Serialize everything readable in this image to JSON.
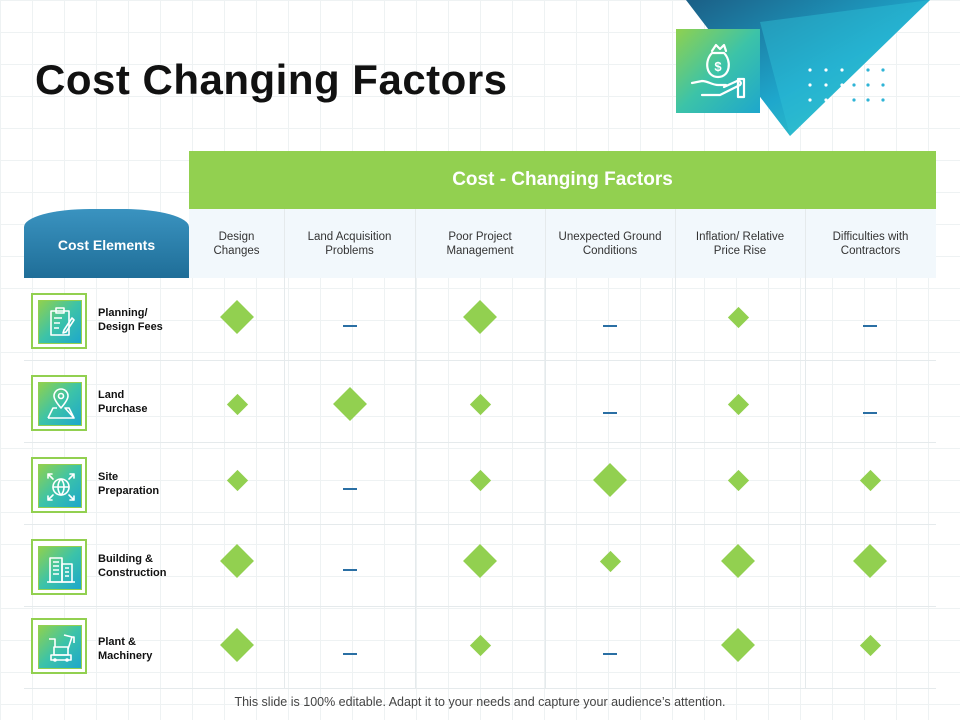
{
  "slide": {
    "title": "Cost Changing Factors",
    "footer": "This slide is 100% editable. Adapt it to your needs and capture your audience’s attention."
  },
  "decoration": {
    "top_icon": "money-bag-in-hand-icon"
  },
  "colors": {
    "accent_green": "#92d050",
    "header_blue": "#1f6e98",
    "teal": "#1ea7cc",
    "dash_blue": "#2a6fa4"
  },
  "table": {
    "super_header": "Cost - Changing Factors",
    "row_header_label": "Cost Elements",
    "columns": [
      "Design\nChanges",
      "Land Acquisition\nProblems",
      "Poor Project\nManagement",
      "Unexpected Ground\nConditions",
      "Inflation/ Relative\nPrice Rise",
      "Difficulties with\nContractors"
    ],
    "rows": [
      {
        "label": "Planning/\nDesign Fees",
        "icon": "clipboard-pencil-icon",
        "cells": [
          "large",
          "none",
          "large",
          "none",
          "small",
          "none"
        ]
      },
      {
        "label": "Land\nPurchase",
        "icon": "map-pin-icon",
        "cells": [
          "small",
          "large",
          "small",
          "none",
          "small",
          "none"
        ]
      },
      {
        "label": "Site\nPreparation",
        "icon": "globe-arrows-icon",
        "cells": [
          "small",
          "none",
          "small",
          "large",
          "small",
          "small"
        ]
      },
      {
        "label": "Building &\nConstruction",
        "icon": "buildings-icon",
        "cells": [
          "large",
          "none",
          "large",
          "small",
          "large",
          "large"
        ]
      },
      {
        "label": "Plant &\nMachinery",
        "icon": "crane-machinery-icon",
        "cells": [
          "large",
          "none",
          "small",
          "none",
          "large",
          "small"
        ]
      }
    ]
  }
}
